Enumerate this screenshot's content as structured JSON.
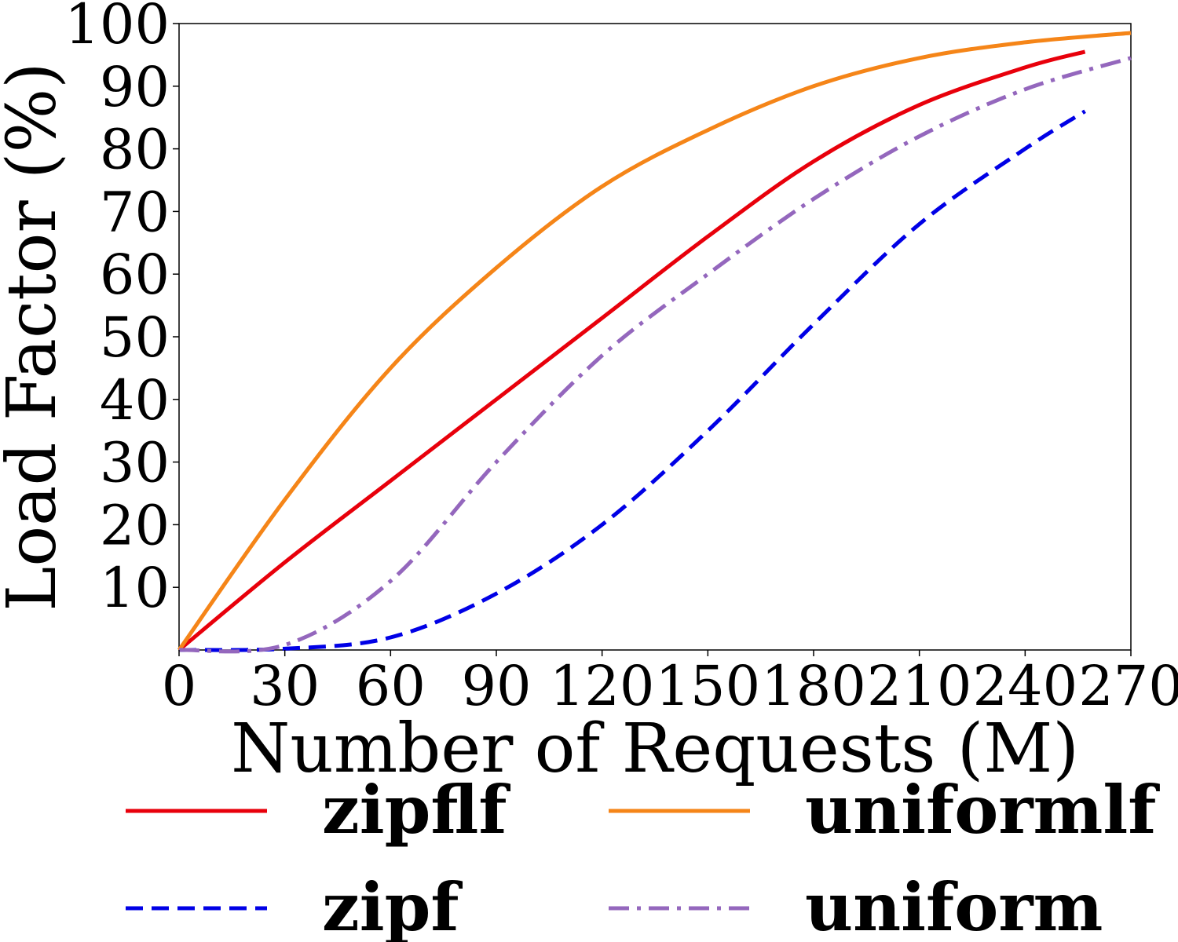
{
  "chart_data": {
    "type": "line",
    "xlabel": "Number of Requests (M)",
    "ylabel": "Load Factor (%)",
    "xlim": [
      0,
      270
    ],
    "ylim": [
      0,
      100
    ],
    "xticks": [
      0,
      30,
      60,
      90,
      120,
      150,
      180,
      210,
      240,
      270
    ],
    "yticks": [
      10,
      20,
      30,
      40,
      50,
      60,
      70,
      80,
      90,
      100
    ],
    "grid": false,
    "legend_placement": "bottom",
    "series": [
      {
        "name": "zipflf",
        "color": "#e8000b",
        "style": "solid",
        "x": [
          0,
          30,
          60,
          90,
          120,
          150,
          180,
          210,
          240,
          257
        ],
        "y": [
          0,
          14,
          27,
          40,
          53,
          66,
          78,
          87,
          93,
          95.5
        ]
      },
      {
        "name": "uniformlf",
        "color": "#f58518",
        "style": "solid",
        "x": [
          0,
          30,
          60,
          90,
          120,
          150,
          180,
          210,
          240,
          270
        ],
        "y": [
          0,
          24,
          45,
          61,
          74,
          83,
          90,
          94.5,
          97,
          98.5
        ]
      },
      {
        "name": "zipf",
        "color": "#0000e6",
        "style": "dashed",
        "x": [
          0,
          30,
          60,
          90,
          120,
          150,
          180,
          210,
          240,
          257
        ],
        "y": [
          0,
          0.2,
          2,
          9,
          20,
          35,
          52,
          68,
          80,
          86
        ]
      },
      {
        "name": "uniform",
        "color": "#9467bd",
        "style": "dashdot",
        "x": [
          0,
          30,
          60,
          90,
          120,
          150,
          180,
          210,
          240,
          270
        ],
        "y": [
          0,
          0.8,
          11,
          30,
          47,
          60,
          72,
          82,
          89.5,
          94.5
        ]
      }
    ]
  }
}
